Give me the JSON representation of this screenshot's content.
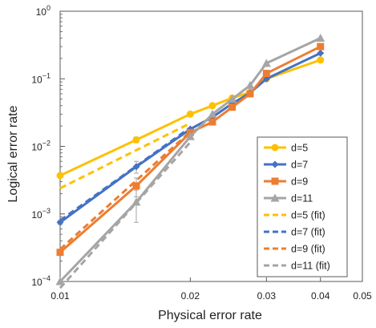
{
  "chart_data": {
    "type": "line",
    "xlabel": "Physical error rate",
    "ylabel": "Logical error rate",
    "xscale": "log",
    "yscale": "log",
    "xlim": [
      0.01,
      0.05
    ],
    "ylim": [
      0.0001,
      1
    ],
    "x_ticks": [
      "0.01",
      "0.02",
      "0.03",
      "0.04",
      "0.05"
    ],
    "x_tick_values": [
      0.01,
      0.02,
      0.03,
      0.04,
      0.05
    ],
    "y_ticks": [
      {
        "base": "10",
        "exp": "0"
      },
      {
        "base": "10",
        "exp": "−1"
      },
      {
        "base": "10",
        "exp": "−2"
      },
      {
        "base": "10",
        "exp": "−3"
      },
      {
        "base": "10",
        "exp": "−4"
      }
    ],
    "y_tick_values": [
      1,
      0.1,
      0.01,
      0.001,
      0.0001
    ],
    "grid": false,
    "legend_position": "bottom-right",
    "series": [
      {
        "name": "d=5",
        "color": "#FFC000",
        "marker": "circle",
        "style": "solid",
        "x": [
          0.01,
          0.015,
          0.02,
          0.0225,
          0.025,
          0.0275,
          0.03,
          0.04
        ],
        "y": [
          0.0037,
          0.0125,
          0.03,
          0.04,
          0.052,
          0.063,
          0.1,
          0.19
        ],
        "yerr": [
          0,
          0.0012,
          0,
          0,
          0,
          0,
          0,
          0
        ]
      },
      {
        "name": "d=7",
        "color": "#4472C4",
        "marker": "diamond",
        "style": "solid",
        "x": [
          0.01,
          0.015,
          0.02,
          0.0225,
          0.025,
          0.0275,
          0.03,
          0.04
        ],
        "y": [
          0.00075,
          0.005,
          0.018,
          0.027,
          0.043,
          0.062,
          0.1,
          0.24
        ],
        "yerr": [
          5e-05,
          0.001,
          0,
          0,
          0,
          0,
          0,
          0
        ]
      },
      {
        "name": "d=9",
        "color": "#ED7D31",
        "marker": "square",
        "style": "solid",
        "x": [
          0.01,
          0.015,
          0.02,
          0.0225,
          0.025,
          0.0275,
          0.03,
          0.04
        ],
        "y": [
          0.00027,
          0.0026,
          0.016,
          0.023,
          0.038,
          0.06,
          0.12,
          0.3
        ],
        "yerr": [
          0,
          0.0008,
          0,
          0,
          0,
          0,
          0,
          0
        ]
      },
      {
        "name": "d=11",
        "color": "#A5A5A5",
        "marker": "triangle",
        "style": "solid",
        "x": [
          0.01,
          0.015,
          0.02,
          0.0225,
          0.025,
          0.0275,
          0.03,
          0.04
        ],
        "y": [
          0.0001,
          0.0015,
          0.014,
          0.03,
          0.05,
          0.08,
          0.17,
          0.4
        ],
        "yerr": [
          0,
          0.00075,
          0,
          0,
          0,
          0,
          0,
          0
        ]
      },
      {
        "name": "d=5 (fit)",
        "color": "#FFC000",
        "style": "dashed",
        "x": [
          0.01,
          0.02
        ],
        "y": [
          0.0024,
          0.022
        ]
      },
      {
        "name": "d=7 (fit)",
        "color": "#4472C4",
        "style": "dashed",
        "x": [
          0.01,
          0.02
        ],
        "y": [
          0.0008,
          0.019
        ]
      },
      {
        "name": "d=9 (fit)",
        "color": "#ED7D31",
        "style": "dashed",
        "x": [
          0.01,
          0.02
        ],
        "y": [
          0.0003,
          0.0165
        ]
      },
      {
        "name": "d=11 (fit)",
        "color": "#A5A5A5",
        "style": "dashed",
        "x": [
          0.01,
          0.02
        ],
        "y": [
          8e-05,
          0.0115
        ]
      }
    ]
  }
}
